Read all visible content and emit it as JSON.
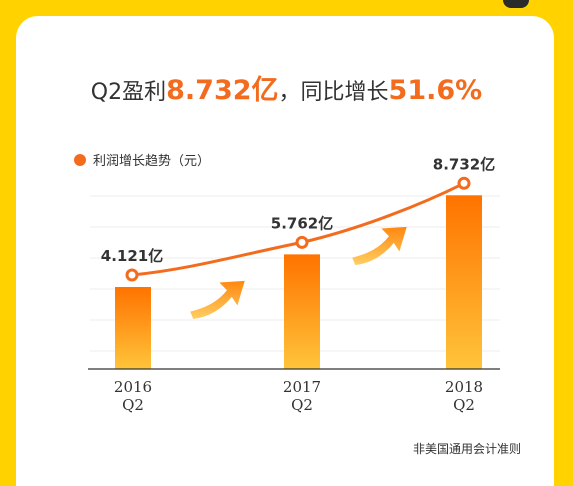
{
  "headline": {
    "prefix": "Q2盈利",
    "profit": "8.732亿",
    "middle": "，同比增长",
    "growth": "51.6%"
  },
  "note": "非美国通用会计准则",
  "colors": {
    "accent": "#F36C1E",
    "bar_top": "#FF7A00",
    "bar_bottom": "#FFC840",
    "frame": "#FFD200"
  },
  "chart_data": {
    "type": "bar",
    "categories": [
      {
        "year": "2016",
        "quarter": "Q2"
      },
      {
        "year": "2017",
        "quarter": "Q2"
      },
      {
        "year": "2018",
        "quarter": "Q2"
      }
    ],
    "values": [
      4.121,
      5.762,
      8.732
    ],
    "value_labels": [
      "4.121亿",
      "5.762亿",
      "8.732亿"
    ],
    "unit": "亿",
    "legend": "利润增长趋势（元）",
    "legend_position": "top-left",
    "ylim": [
      0,
      9.5
    ],
    "grid": true,
    "trend_line": true
  }
}
